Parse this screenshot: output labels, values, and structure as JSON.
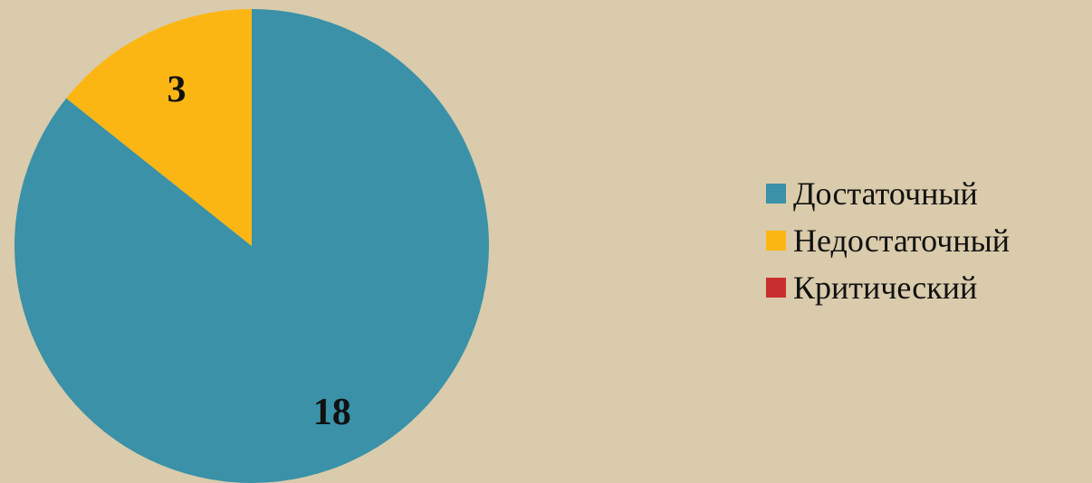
{
  "background": "#d9cbab",
  "chart_data": {
    "type": "pie",
    "start_angle_deg": 0,
    "direction": "clockwise",
    "legend_position": "right",
    "categories": [
      "Достаточный",
      "Недостаточный",
      "Критический"
    ],
    "values": [
      18,
      3,
      0
    ],
    "data_labels": [
      "18",
      "3",
      ""
    ],
    "colors": [
      "#3a91a8",
      "#fcb614",
      "#c92e2f"
    ]
  }
}
